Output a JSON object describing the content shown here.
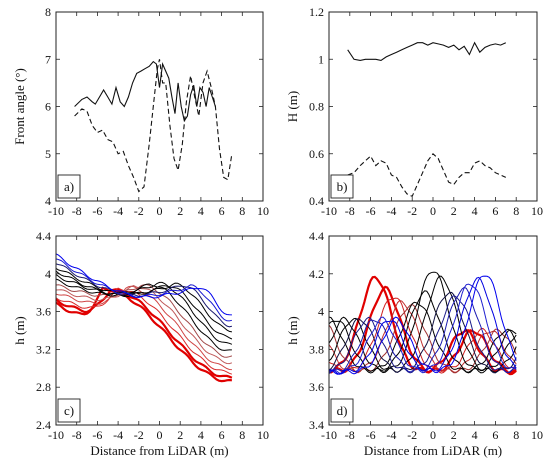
{
  "chart_data": [
    {
      "panel_label": "a)",
      "type": "line",
      "ylabel": "Front angle (°)",
      "xlim": [
        -10,
        10
      ],
      "ylim": [
        4,
        8
      ],
      "xticks": [
        -10,
        -8,
        -6,
        -4,
        -2,
        0,
        2,
        4,
        6,
        8,
        10
      ],
      "yticks": [
        4,
        5,
        6,
        7,
        8
      ],
      "series": [
        {
          "style": "solid",
          "x": [
            -8.2,
            -7.5,
            -7,
            -6.5,
            -6.2,
            -5.8,
            -5.4,
            -5,
            -4.6,
            -4.2,
            -3.8,
            -3.4,
            -3,
            -2.6,
            -2.2,
            -1.8,
            -1.4,
            -1,
            -0.6,
            -0.3,
            0,
            0.3,
            0.6,
            0.9,
            1.2,
            1.5,
            1.8,
            2.1,
            2.4,
            2.7,
            3,
            3.3,
            3.6,
            3.9,
            4.2,
            4.5,
            4.8,
            5.1,
            5.4
          ],
          "y": [
            6.0,
            6.15,
            6.2,
            6.1,
            6.05,
            6.2,
            6.35,
            6.2,
            6.05,
            6.4,
            6.1,
            6.0,
            6.2,
            6.5,
            6.7,
            6.75,
            6.8,
            6.85,
            6.95,
            6.9,
            6.4,
            6.9,
            6.75,
            6.6,
            6.2,
            5.85,
            6.5,
            6.0,
            5.7,
            5.8,
            6.25,
            6.45,
            6.0,
            6.4,
            6.3,
            6.0,
            6.4,
            6.2,
            6.0
          ]
        },
        {
          "style": "dashed",
          "x": [
            -8.2,
            -7.5,
            -7,
            -6.5,
            -6,
            -5.5,
            -5,
            -4.5,
            -4,
            -3.5,
            -3,
            -2.5,
            -2,
            -1.5,
            -1,
            -0.5,
            -0.2,
            0,
            0.3,
            0.6,
            1,
            1.4,
            1.8,
            2.2,
            2.6,
            3,
            3.4,
            3.8,
            4.2,
            4.6,
            5,
            5.4,
            5.8,
            6.2,
            6.6,
            7
          ],
          "y": [
            5.8,
            5.95,
            5.9,
            5.6,
            5.45,
            5.5,
            5.3,
            5.25,
            5.0,
            5.05,
            4.75,
            4.5,
            4.2,
            4.3,
            5.2,
            6.2,
            6.8,
            7.0,
            6.5,
            6.5,
            5.6,
            4.9,
            4.65,
            5.2,
            6.1,
            6.65,
            6.2,
            5.8,
            6.5,
            6.75,
            6.4,
            6.0,
            5.1,
            4.5,
            4.45,
            5.0
          ]
        }
      ]
    },
    {
      "panel_label": "b)",
      "type": "line",
      "ylabel": "H (m)",
      "xlim": [
        -10,
        10
      ],
      "ylim": [
        0.4,
        1.2
      ],
      "xticks": [
        -10,
        -8,
        -6,
        -4,
        -2,
        0,
        2,
        4,
        6,
        8,
        10
      ],
      "yticks": [
        0.4,
        0.6,
        0.8,
        1,
        1.2
      ],
      "series": [
        {
          "style": "solid",
          "x": [
            -8.2,
            -7.6,
            -7,
            -6.5,
            -6,
            -5.5,
            -5,
            -4.5,
            -4,
            -3.5,
            -3,
            -2.5,
            -2,
            -1.5,
            -1,
            -0.5,
            0,
            0.5,
            1,
            1.5,
            2,
            2.5,
            3,
            3.5,
            4,
            4.5,
            5,
            5.5,
            6,
            6.5,
            7
          ],
          "y": [
            1.04,
            1.0,
            0.995,
            1.0,
            1.0,
            1.0,
            0.995,
            1.01,
            1.02,
            1.03,
            1.04,
            1.05,
            1.06,
            1.07,
            1.07,
            1.06,
            1.07,
            1.065,
            1.06,
            1.05,
            1.06,
            1.04,
            1.055,
            1.02,
            1.07,
            1.03,
            1.05,
            1.06,
            1.065,
            1.06,
            1.07
          ]
        },
        {
          "style": "dashed",
          "x": [
            -8.2,
            -7.6,
            -7,
            -6.5,
            -6,
            -5.5,
            -5,
            -4.5,
            -4,
            -3.5,
            -3,
            -2.5,
            -2,
            -1.5,
            -1,
            -0.5,
            0,
            0.5,
            1,
            1.5,
            2,
            2.5,
            3,
            3.5,
            4,
            4.5,
            5,
            5.5,
            6,
            6.5,
            7
          ],
          "y": [
            0.51,
            0.52,
            0.55,
            0.57,
            0.59,
            0.55,
            0.57,
            0.56,
            0.51,
            0.5,
            0.46,
            0.43,
            0.42,
            0.47,
            0.52,
            0.57,
            0.6,
            0.58,
            0.53,
            0.48,
            0.47,
            0.5,
            0.52,
            0.52,
            0.56,
            0.57,
            0.55,
            0.54,
            0.52,
            0.51,
            0.5
          ]
        }
      ]
    },
    {
      "panel_label": "c)",
      "type": "line",
      "ylabel": "h (m)",
      "xlabel": "Distance from LiDAR (m)",
      "xlim": [
        -10,
        10
      ],
      "ylim": [
        2.4,
        4.4
      ],
      "xticks": [
        -10,
        -8,
        -6,
        -4,
        -2,
        0,
        2,
        4,
        6,
        8,
        10
      ],
      "yticks": [
        2.4,
        2.8,
        3.2,
        3.6,
        4,
        4.4
      ],
      "xrange": [
        -10,
        7
      ],
      "profiles": {
        "count": 13,
        "start_left": [
          3.68,
          3.72,
          3.75,
          3.8,
          3.84,
          3.88,
          3.93,
          3.98,
          4.03,
          4.07,
          4.12,
          4.16,
          4.2
        ],
        "crest_x": [
          -5.5,
          -4.8,
          -4,
          -3.2,
          -2.5,
          -1.8,
          -1,
          -0.2,
          0.6,
          1.4,
          2.2,
          3,
          3.8
        ],
        "crest_h": [
          3.84,
          3.83,
          3.84,
          3.86,
          3.87,
          3.88,
          3.89,
          3.9,
          3.88,
          3.89,
          3.88,
          3.87,
          3.86
        ],
        "end_h": [
          2.86,
          2.9,
          2.95,
          3.0,
          3.06,
          3.12,
          3.18,
          3.25,
          3.32,
          3.4,
          3.45,
          3.5,
          3.55
        ],
        "colors": [
          "#e00000",
          "#e00000",
          "#d82a2a",
          "#d04646",
          "#c05a5a",
          "#a04848",
          "#000000",
          "#000000",
          "#000000",
          "#000000",
          "#1a1a6e",
          "#1c1cd0",
          "#0000ee"
        ]
      }
    },
    {
      "panel_label": "d)",
      "type": "line",
      "ylabel": "h (m)",
      "xlabel": "Distance from LiDAR (m)",
      "xlim": [
        -10,
        10
      ],
      "ylim": [
        3.4,
        4.4
      ],
      "xticks": [
        -10,
        -8,
        -6,
        -4,
        -2,
        0,
        2,
        4,
        6,
        8,
        10
      ],
      "yticks": [
        3.4,
        3.6,
        3.8,
        4,
        4.2,
        4.4
      ],
      "xrange": [
        -10,
        8
      ],
      "profiles": {
        "count": 15,
        "crest_x": [
          -5.5,
          -4.6,
          -3.8,
          -3.0,
          -2.2,
          -1.5,
          -0.8,
          0,
          0.8,
          1.5,
          2.2,
          2.9,
          3.6,
          4.3,
          5.0
        ],
        "crest_h": [
          4.18,
          4.12,
          4.08,
          4.05,
          4.03,
          4.05,
          4.1,
          4.22,
          4.18,
          4.1,
          4.08,
          4.12,
          4.15,
          4.17,
          4.2
        ],
        "colors": [
          "#e00000",
          "#e00000",
          "#d02020",
          "#c03030",
          "#a03030",
          "#000000",
          "#000000",
          "#000000",
          "#000000",
          "#101040",
          "#1a1a8a",
          "#1a1ab0",
          "#2020d0",
          "#0000e0",
          "#0000ee"
        ]
      }
    }
  ]
}
